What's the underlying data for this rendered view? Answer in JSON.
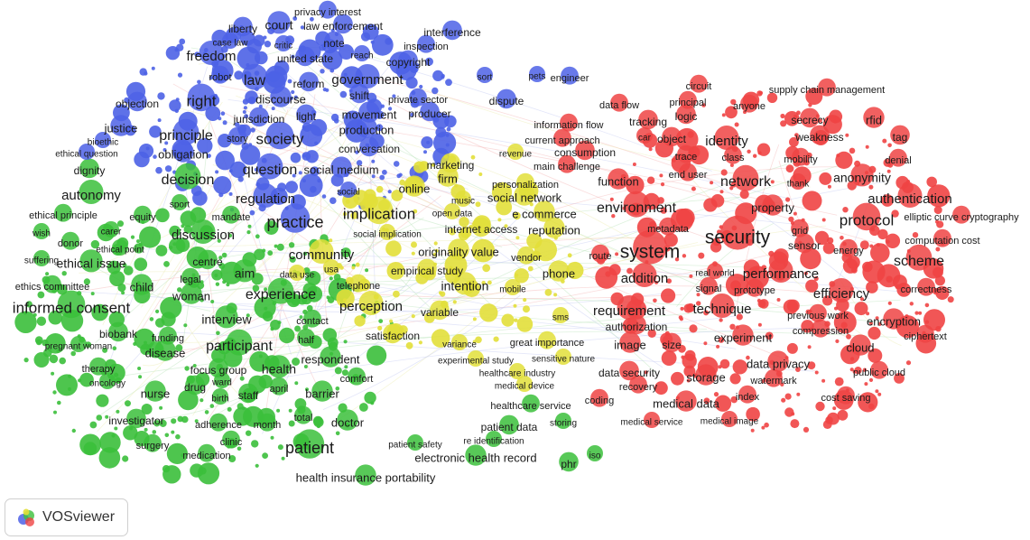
{
  "app": {
    "name": "VOSviewer"
  },
  "colors": {
    "red": "#ef4444",
    "green": "#3bbf3b",
    "blue": "#4d62e6",
    "yellow": "#e2df3a"
  },
  "clusters": {
    "red": [
      [
        "system",
        21,
        720,
        280
      ],
      [
        "security",
        21,
        817,
        264
      ],
      [
        "network",
        16,
        826,
        202
      ],
      [
        "protocol",
        17,
        960,
        245
      ],
      [
        "scheme",
        16,
        1018,
        290
      ],
      [
        "authentication",
        15,
        1008,
        221
      ],
      [
        "environment",
        16,
        705,
        231
      ],
      [
        "technique",
        15,
        800,
        343
      ],
      [
        "requirement",
        15,
        697,
        345
      ],
      [
        "addition",
        15,
        714,
        309
      ],
      [
        "performance",
        15,
        865,
        304
      ],
      [
        "efficiency",
        15,
        932,
        326
      ],
      [
        "identity",
        15,
        805,
        157
      ],
      [
        "anonymity",
        14,
        955,
        198
      ],
      [
        "encryption",
        13,
        990,
        357
      ],
      [
        "cloud",
        13,
        953,
        386
      ],
      [
        "experiment",
        13,
        823,
        375
      ],
      [
        "storage",
        13,
        782,
        419
      ],
      [
        "data privacy",
        13,
        862,
        404
      ],
      [
        "data security",
        12,
        697,
        414
      ],
      [
        "medical data",
        13,
        760,
        448
      ],
      [
        "property",
        13,
        856,
        231
      ],
      [
        "function",
        13,
        685,
        202
      ],
      [
        "image",
        13,
        698,
        383
      ],
      [
        "size",
        12,
        744,
        383
      ],
      [
        "sensor",
        12,
        891,
        273
      ],
      [
        "rfid",
        13,
        968,
        134
      ],
      [
        "secrecy",
        12,
        897,
        134
      ],
      [
        "weakness",
        12,
        908,
        153
      ],
      [
        "mobility",
        11,
        887,
        177
      ],
      [
        "tag",
        12,
        997,
        153
      ],
      [
        "denial",
        11,
        995,
        178
      ],
      [
        "logic",
        12,
        760,
        130
      ],
      [
        "object",
        12,
        744,
        155
      ],
      [
        "class",
        11,
        812,
        175
      ],
      [
        "trace",
        11,
        760,
        174
      ],
      [
        "consumption",
        12,
        648,
        170
      ],
      [
        "authorization",
        12,
        705,
        363
      ],
      [
        "prototype",
        11,
        836,
        322
      ],
      [
        "signal",
        11,
        785,
        320
      ],
      [
        "compression",
        11,
        909,
        367
      ],
      [
        "previous work",
        11,
        906,
        350
      ],
      [
        "correctness",
        11,
        1026,
        321
      ],
      [
        "ciphertext",
        11,
        1025,
        373
      ],
      [
        "public cloud",
        11,
        974,
        413
      ],
      [
        "cost saving",
        11,
        937,
        441
      ],
      [
        "computation cost",
        11,
        1044,
        267
      ],
      [
        "elliptic curve cryptography",
        11,
        1065,
        241
      ],
      [
        "energy",
        11,
        940,
        278
      ],
      [
        "grid",
        11,
        886,
        256
      ],
      [
        "thank",
        10,
        884,
        204
      ],
      [
        "metadata",
        11,
        740,
        254
      ],
      [
        "real world",
        10,
        792,
        303
      ],
      [
        "route",
        11,
        665,
        284
      ],
      [
        "circuit",
        11,
        774,
        96
      ],
      [
        "principal",
        11,
        762,
        114
      ],
      [
        "anyone",
        11,
        830,
        118
      ],
      [
        "supply chain management",
        11,
        916,
        100
      ],
      [
        "tracking",
        12,
        718,
        136
      ],
      [
        "car",
        10,
        714,
        153
      ],
      [
        "end user",
        11,
        762,
        194
      ],
      [
        "data flow",
        11,
        686,
        117
      ],
      [
        "information flow",
        11,
        630,
        139
      ],
      [
        "current approach",
        11,
        623,
        156
      ],
      [
        "main challenge",
        11,
        628,
        185
      ],
      [
        "watermark",
        11,
        857,
        422
      ],
      [
        "index",
        11,
        828,
        440
      ],
      [
        "recovery",
        11,
        707,
        429
      ],
      [
        "medical service",
        10,
        722,
        468
      ],
      [
        "medical image",
        10,
        808,
        467
      ],
      [
        "coding",
        11,
        664,
        444
      ]
    ],
    "green": [
      [
        "patient",
        18,
        343,
        497
      ],
      [
        "participant",
        16,
        265,
        384
      ],
      [
        "informed consent",
        17,
        79,
        342
      ],
      [
        "experience",
        16,
        311,
        327
      ],
      [
        "discussion",
        15,
        225,
        261
      ],
      [
        "autonomy",
        15,
        101,
        217
      ],
      [
        "ethical issue",
        14,
        101,
        293
      ],
      [
        "health",
        14,
        309,
        410
      ],
      [
        "interview",
        14,
        251,
        355
      ],
      [
        "decision",
        16,
        208,
        200
      ],
      [
        "disease",
        13,
        183,
        392
      ],
      [
        "respondent",
        13,
        366,
        399
      ],
      [
        "barrier",
        13,
        357,
        437
      ],
      [
        "doctor",
        13,
        385,
        469
      ],
      [
        "nurse",
        13,
        172,
        437
      ],
      [
        "child",
        13,
        157,
        319
      ],
      [
        "woman",
        13,
        212,
        329
      ],
      [
        "aim",
        14,
        271,
        304
      ],
      [
        "dignity",
        12,
        99,
        190
      ],
      [
        "health insurance portability",
        13,
        405,
        530
      ],
      [
        "electronic health record",
        13,
        527,
        508
      ],
      [
        "staff",
        12,
        275,
        439
      ],
      [
        "focus group",
        12,
        242,
        411
      ],
      [
        "drug",
        12,
        216,
        430
      ],
      [
        "therapy",
        11,
        109,
        409
      ],
      [
        "oncology",
        10,
        119,
        425
      ],
      [
        "investigator",
        12,
        151,
        467
      ],
      [
        "surgery",
        11,
        169,
        494
      ],
      [
        "medication",
        11,
        229,
        505
      ],
      [
        "clinic",
        11,
        256,
        490
      ],
      [
        "adherence",
        11,
        242,
        471
      ],
      [
        "month",
        11,
        296,
        471
      ],
      [
        "total",
        11,
        336,
        463
      ],
      [
        "april",
        11,
        309,
        431
      ],
      [
        "comfort",
        11,
        395,
        420
      ],
      [
        "half",
        11,
        339,
        377
      ],
      [
        "contact",
        11,
        346,
        356
      ],
      [
        "biobank",
        12,
        131,
        371
      ],
      [
        "funding",
        11,
        186,
        375
      ],
      [
        "pregnant woman",
        10,
        87,
        384
      ],
      [
        "ethics committee",
        11,
        58,
        318
      ],
      [
        "legal",
        11,
        211,
        310
      ],
      [
        "centre",
        12,
        230,
        291
      ],
      [
        "suffering",
        10,
        46,
        289
      ],
      [
        "ethical point",
        10,
        133,
        277
      ],
      [
        "donor",
        11,
        78,
        270
      ],
      [
        "wish",
        10,
        46,
        259
      ],
      [
        "carer",
        10,
        123,
        257
      ],
      [
        "equity",
        11,
        158,
        241
      ],
      [
        "ethical principle",
        11,
        70,
        239
      ],
      [
        "sport",
        10,
        199,
        227
      ],
      [
        "mandate",
        11,
        256,
        241
      ],
      [
        "birth",
        10,
        244,
        442
      ],
      [
        "ward",
        10,
        246,
        424
      ],
      [
        "patient safety",
        10,
        460,
        493
      ],
      [
        "re identification",
        10,
        547,
        489
      ],
      [
        "patient data",
        12,
        564,
        474
      ],
      [
        "storing",
        10,
        624,
        469
      ],
      [
        "healthcare service",
        11,
        588,
        450
      ],
      [
        "phr",
        12,
        630,
        515
      ],
      [
        "iso",
        10,
        659,
        505
      ]
    ],
    "blue": [
      [
        "practice",
        18,
        327,
        247
      ],
      [
        "society",
        17,
        310,
        155
      ],
      [
        "question",
        16,
        299,
        189
      ],
      [
        "law",
        16,
        282,
        90
      ],
      [
        "right",
        17,
        223,
        113
      ],
      [
        "principle",
        16,
        206,
        151
      ],
      [
        "regulation",
        15,
        294,
        221
      ],
      [
        "freedom",
        15,
        234,
        63
      ],
      [
        "government",
        15,
        407,
        89
      ],
      [
        "movement",
        13,
        409,
        128
      ],
      [
        "production",
        13,
        406,
        145
      ],
      [
        "justice",
        13,
        134,
        143
      ],
      [
        "obligation",
        13,
        203,
        172
      ],
      [
        "court",
        14,
        309,
        29
      ],
      [
        "discourse",
        13,
        311,
        111
      ],
      [
        "social medium",
        13,
        378,
        189
      ],
      [
        "reform",
        12,
        342,
        94
      ],
      [
        "shift",
        12,
        398,
        107
      ],
      [
        "light",
        12,
        339,
        130
      ],
      [
        "jurisdiction",
        12,
        287,
        133
      ],
      [
        "story",
        11,
        263,
        154
      ],
      [
        "conversation",
        12,
        409,
        166
      ],
      [
        "united state",
        12,
        338,
        66
      ],
      [
        "note",
        12,
        370,
        49
      ],
      [
        "law enforcement",
        12,
        380,
        30
      ],
      [
        "privacy interest",
        11,
        363,
        14
      ],
      [
        "liberty",
        12,
        269,
        33
      ],
      [
        "case law",
        10,
        255,
        48
      ],
      [
        "critic",
        10,
        314,
        51
      ],
      [
        "reach",
        10,
        401,
        62
      ],
      [
        "copyright",
        12,
        452,
        70
      ],
      [
        "inspection",
        11,
        472,
        52
      ],
      [
        "interference",
        12,
        501,
        37
      ],
      [
        "robot",
        11,
        244,
        86
      ],
      [
        "objection",
        12,
        152,
        116
      ],
      [
        "bioethic",
        10,
        114,
        158
      ],
      [
        "ethical question",
        10,
        96,
        171
      ],
      [
        "private sector",
        11,
        463,
        111
      ],
      [
        "producer",
        12,
        476,
        127
      ],
      [
        "social",
        10,
        386,
        213
      ],
      [
        "sort",
        10,
        537,
        86
      ],
      [
        "pets",
        10,
        595,
        85
      ],
      [
        "engineer",
        11,
        631,
        87
      ],
      [
        "dispute",
        12,
        561,
        113
      ]
    ],
    "yellow": [
      [
        "implication",
        17,
        420,
        238
      ],
      [
        "community",
        15,
        356,
        283
      ],
      [
        "perception",
        15,
        411,
        340
      ],
      [
        "intention",
        14,
        515,
        318
      ],
      [
        "originality value",
        13,
        508,
        280
      ],
      [
        "empirical study",
        12,
        473,
        301
      ],
      [
        "phone",
        13,
        619,
        304
      ],
      [
        "e commerce",
        13,
        603,
        238
      ],
      [
        "social network",
        13,
        581,
        220
      ],
      [
        "reputation",
        13,
        614,
        256
      ],
      [
        "internet access",
        12,
        533,
        255
      ],
      [
        "personalization",
        11,
        582,
        205
      ],
      [
        "online",
        13,
        459,
        210
      ],
      [
        "firm",
        13,
        496,
        199
      ],
      [
        "marketing",
        12,
        499,
        184
      ],
      [
        "revenue",
        10,
        571,
        171
      ],
      [
        "music",
        10,
        513,
        223
      ],
      [
        "open data",
        10,
        501,
        237
      ],
      [
        "social implication",
        10,
        429,
        260
      ],
      [
        "data use",
        10,
        329,
        305
      ],
      [
        "usa",
        10,
        367,
        299
      ],
      [
        "telephone",
        11,
        397,
        317
      ],
      [
        "vendor",
        11,
        583,
        286
      ],
      [
        "mobile",
        10,
        568,
        321
      ],
      [
        "variable",
        12,
        487,
        347
      ],
      [
        "satisfaction",
        12,
        435,
        373
      ],
      [
        "variance",
        10,
        509,
        382
      ],
      [
        "great importance",
        11,
        606,
        380
      ],
      [
        "experimental study",
        10,
        527,
        400
      ],
      [
        "healthcare industry",
        10,
        573,
        414
      ],
      [
        "sensitive nature",
        10,
        624,
        398
      ],
      [
        "medical device",
        10,
        581,
        428
      ],
      [
        "sms",
        10,
        621,
        352
      ]
    ]
  }
}
